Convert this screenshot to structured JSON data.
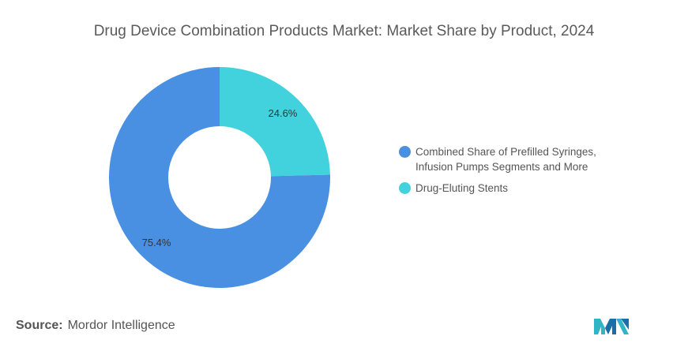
{
  "title": "Drug Device Combination Products Market: Market Share by Product, 2024",
  "chart_data": {
    "type": "pie",
    "donut": true,
    "title": "Drug Device Combination Products Market: Market Share by Product, 2024",
    "slices": [
      {
        "label": "Combined Share of Prefilled Syringes,\nInfusion Pumps Segments and More",
        "value": 75.4,
        "display": "75.4%",
        "color": "#4a90e2"
      },
      {
        "label": "Drug-Eluting Stents",
        "value": 24.6,
        "display": "24.6%",
        "color": "#42d2de"
      }
    ],
    "legend_position": "right"
  },
  "source": {
    "label": "Source:",
    "text": "Mordor Intelligence"
  },
  "logo_icon": "mordor-intelligence-logo"
}
